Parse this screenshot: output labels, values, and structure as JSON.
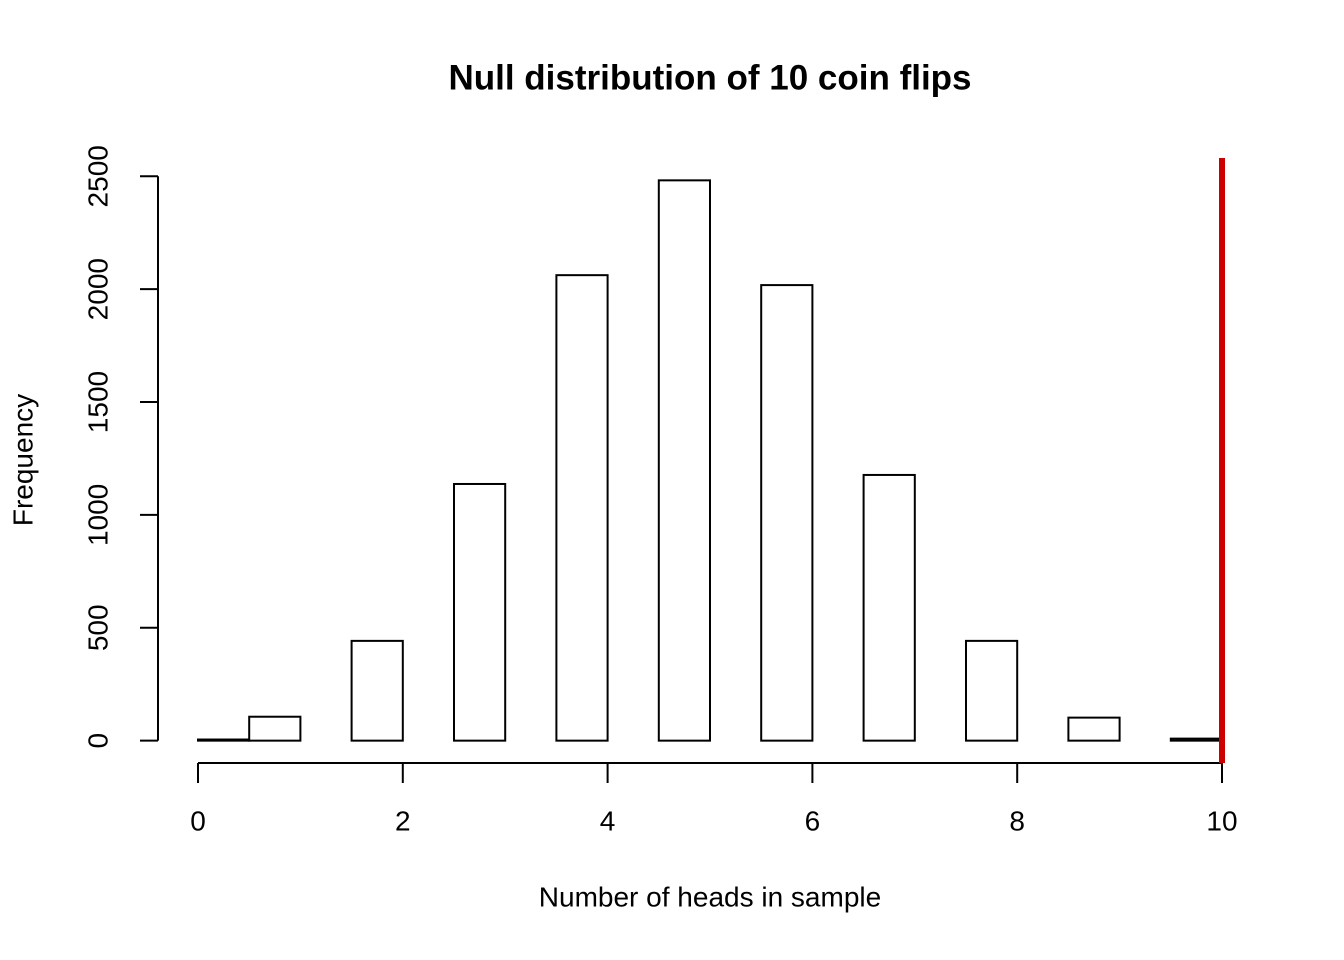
{
  "chart_data": {
    "type": "histogram",
    "title": "Null distribution of 10 coin flips",
    "x_label": "Number of heads in sample",
    "y_label": "Frequency",
    "bins": [
      0,
      0.5,
      1,
      1.5,
      2,
      2.5,
      3,
      3.5,
      4,
      4.5,
      5,
      5.5,
      6,
      6.5,
      7,
      7.5,
      8,
      8.5,
      9,
      9.5,
      10
    ],
    "values": [
      5,
      106,
      0,
      442,
      0,
      1137,
      0,
      2062,
      0,
      2482,
      0,
      2018,
      0,
      1177,
      0,
      442,
      0,
      102,
      0,
      9
    ],
    "color": "#ffffff",
    "xlim": [
      0,
      10
    ],
    "xticks": [
      0,
      2,
      4,
      6,
      8,
      10
    ],
    "ylim": [
      -99,
      2581
    ],
    "yticks": [
      0,
      500,
      1000,
      1500,
      2000,
      2500
    ],
    "vline": {
      "value": 10,
      "color": "#cc0000"
    }
  }
}
